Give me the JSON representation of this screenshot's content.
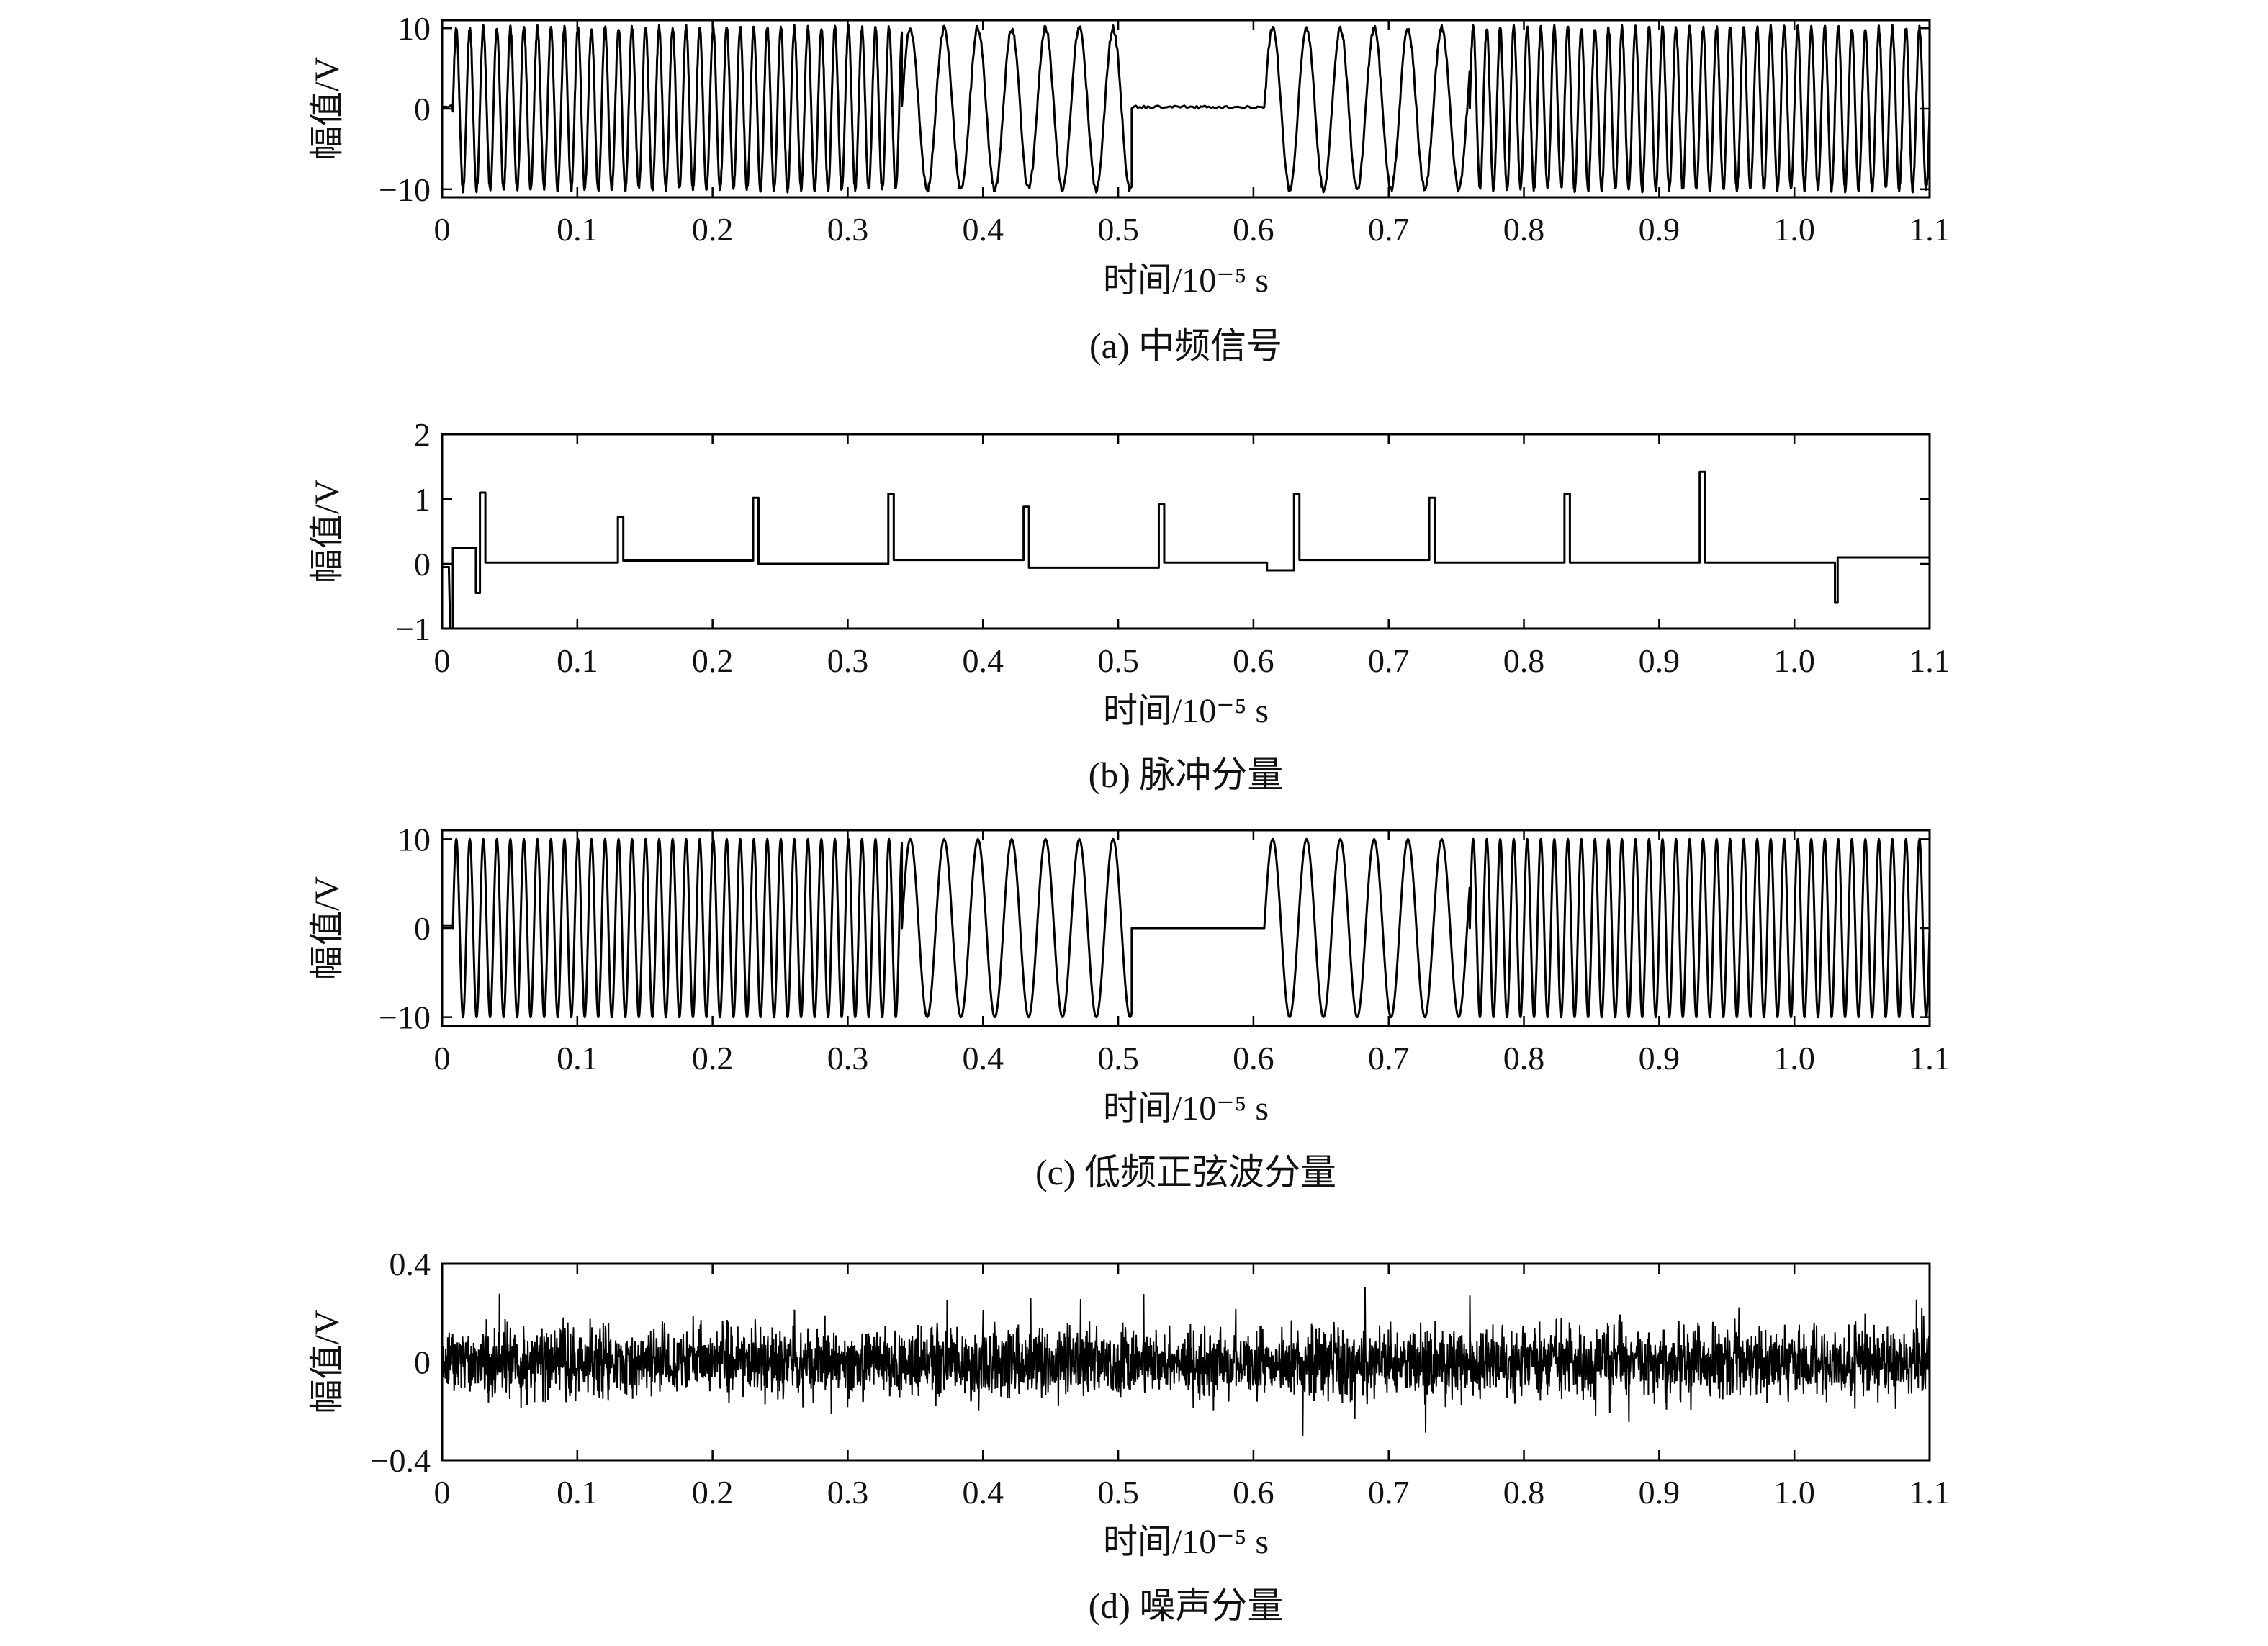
{
  "chart_data": [
    {
      "type": "line",
      "caption": "(a) 中频信号",
      "xlabel": "时间/10⁻⁵ s",
      "ylabel": "幅值/V",
      "xlim": [
        0,
        1.1
      ],
      "ylim": [
        -11,
        11
      ],
      "xticks": [
        "0",
        "0.1",
        "0.2",
        "0.3",
        "0.4",
        "0.5",
        "0.6",
        "0.7",
        "0.8",
        "0.9",
        "1.0",
        "1.1"
      ],
      "xtick_values": [
        0,
        0.1,
        0.2,
        0.3,
        0.4,
        0.5,
        0.6,
        0.7,
        0.8,
        0.9,
        1.0,
        1.1
      ],
      "yticks": [
        "10",
        "0",
        "−10"
      ],
      "ytick_values": [
        10,
        0,
        -10
      ],
      "grid": false,
      "series": [
        {
          "amplitude": 10,
          "segments": [
            {
              "x_start": 0,
              "x_end": 0.008,
              "kind": "flat",
              "level": 0.3
            },
            {
              "x_start": 0.008,
              "x_end": 0.34,
              "kind": "sine",
              "period": 0.01
            },
            {
              "x_start": 0.34,
              "x_end": 0.51,
              "kind": "sine",
              "period": 0.025
            },
            {
              "x_start": 0.51,
              "x_end": 0.608,
              "kind": "flat",
              "level": 0.2
            },
            {
              "x_start": 0.608,
              "x_end": 0.76,
              "kind": "sine",
              "period": 0.025
            },
            {
              "x_start": 0.76,
              "x_end": 1.1,
              "kind": "sine",
              "period": 0.01
            }
          ]
        }
      ]
    },
    {
      "type": "line",
      "caption": "(b) 脉冲分量",
      "xlabel": "时间/10⁻⁵ s",
      "ylabel": "幅值/V",
      "xlim": [
        0,
        1.1
      ],
      "ylim": [
        -1,
        2
      ],
      "xticks": [
        "0",
        "0.1",
        "0.2",
        "0.3",
        "0.4",
        "0.5",
        "0.6",
        "0.7",
        "0.8",
        "0.9",
        "1.0",
        "1.1"
      ],
      "xtick_values": [
        0,
        0.1,
        0.2,
        0.3,
        0.4,
        0.5,
        0.6,
        0.7,
        0.8,
        0.9,
        1.0,
        1.1
      ],
      "yticks": [
        "2",
        "1",
        "0",
        "−1"
      ],
      "ytick_values": [
        2,
        1,
        0,
        -1
      ],
      "grid": false,
      "series": [
        {
          "x": [
            0,
            0.005,
            0.006,
            0.008,
            0.008,
            0.01,
            0.01,
            0.025,
            0.025,
            0.028,
            0.028,
            0.032,
            0.032,
            0.13,
            0.13,
            0.134,
            0.134,
            0.23,
            0.23,
            0.234,
            0.234,
            0.33,
            0.33,
            0.334,
            0.334,
            0.43,
            0.43,
            0.434,
            0.434,
            0.53,
            0.53,
            0.534,
            0.534,
            0.61,
            0.61,
            0.63,
            0.63,
            0.634,
            0.634,
            0.73,
            0.73,
            0.734,
            0.734,
            0.83,
            0.83,
            0.834,
            0.834,
            0.93,
            0.93,
            0.934,
            0.934,
            1.03,
            1.03,
            1.032,
            1.032,
            1.1
          ],
          "y": [
            -0.05,
            -0.05,
            -1.0,
            -1.0,
            0.25,
            0.25,
            0.25,
            0.25,
            -0.45,
            -0.45,
            1.1,
            1.1,
            0.02,
            0.02,
            0.72,
            0.72,
            0.05,
            0.05,
            1.02,
            1.02,
            0.0,
            0.0,
            1.08,
            1.08,
            0.06,
            0.06,
            0.88,
            0.88,
            -0.06,
            -0.06,
            0.92,
            0.92,
            0.02,
            0.02,
            -0.1,
            -0.1,
            1.08,
            1.08,
            0.06,
            0.06,
            1.02,
            1.02,
            0.02,
            0.02,
            1.08,
            1.08,
            0.02,
            0.02,
            1.42,
            1.42,
            0.02,
            0.02,
            -0.6,
            -0.6,
            0.1,
            0.1
          ]
        }
      ]
    },
    {
      "type": "line",
      "caption": "(c) 低频正弦波分量",
      "xlabel": "时间/10⁻⁵ s",
      "ylabel": "幅值/V",
      "xlim": [
        0,
        1.1
      ],
      "ylim": [
        -11,
        11
      ],
      "xticks": [
        "0",
        "0.1",
        "0.2",
        "0.3",
        "0.4",
        "0.5",
        "0.6",
        "0.7",
        "0.8",
        "0.9",
        "1.0",
        "1.1"
      ],
      "xtick_values": [
        0,
        0.1,
        0.2,
        0.3,
        0.4,
        0.5,
        0.6,
        0.7,
        0.8,
        0.9,
        1.0,
        1.1
      ],
      "yticks": [
        "10",
        "0",
        "−10"
      ],
      "ytick_values": [
        10,
        0,
        -10
      ],
      "grid": false,
      "series": [
        {
          "amplitude": 10,
          "segments": [
            {
              "x_start": 0,
              "x_end": 0.008,
              "kind": "flat",
              "level": 0.3
            },
            {
              "x_start": 0.008,
              "x_end": 0.34,
              "kind": "sine",
              "period": 0.01
            },
            {
              "x_start": 0.34,
              "x_end": 0.51,
              "kind": "sine",
              "period": 0.025
            },
            {
              "x_start": 0.51,
              "x_end": 0.608,
              "kind": "flat",
              "level": 0.0
            },
            {
              "x_start": 0.608,
              "x_end": 0.76,
              "kind": "sine",
              "period": 0.025
            },
            {
              "x_start": 0.76,
              "x_end": 1.1,
              "kind": "sine",
              "period": 0.01
            }
          ]
        }
      ]
    },
    {
      "type": "line",
      "caption": "(d) 噪声分量",
      "xlabel": "时间/10⁻⁵ s",
      "ylabel": "幅值/V",
      "xlim": [
        0,
        1.1
      ],
      "ylim": [
        -0.4,
        0.4
      ],
      "xticks": [
        "0",
        "0.1",
        "0.2",
        "0.3",
        "0.4",
        "0.5",
        "0.6",
        "0.7",
        "0.8",
        "0.9",
        "1.0",
        "1.1"
      ],
      "xtick_values": [
        0,
        0.1,
        0.2,
        0.3,
        0.4,
        0.5,
        0.6,
        0.7,
        0.8,
        0.9,
        1.0,
        1.1
      ],
      "yticks": [
        "0.4",
        "0",
        "−0.4"
      ],
      "ytick_values": [
        0.4,
        0,
        -0.4
      ],
      "grid": false,
      "series": [
        {
          "kind": "noise",
          "std": 0.07,
          "peak": 0.32
        }
      ]
    }
  ]
}
